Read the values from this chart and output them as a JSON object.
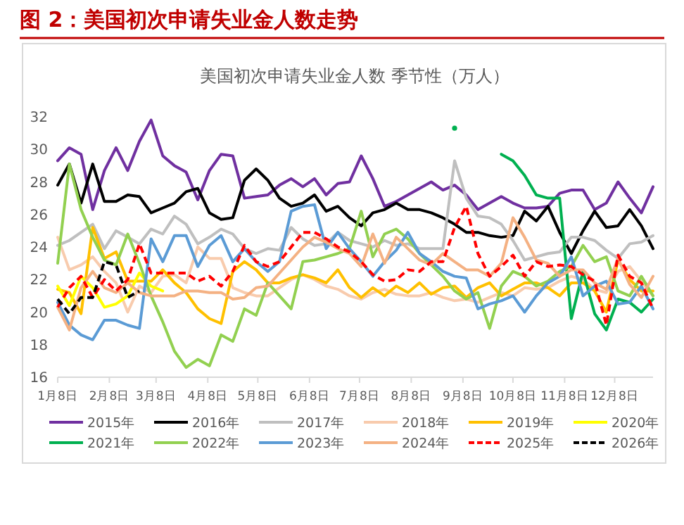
{
  "chart_data": {
    "type": "line",
    "title": "图 2：美国初次申请失业金人数走势",
    "subtitle": "美国初次申请失业金人数 季节性（万人）",
    "x": [
      "--01-08",
      "--01-15",
      "--01-22",
      "--01-29",
      "--02-05",
      "--02-12",
      "--02-19",
      "--02-26",
      "--03-05",
      "--03-12",
      "--03-19",
      "--03-26",
      "--04-02",
      "--04-09",
      "--04-16",
      "--04-23",
      "--04-30",
      "--05-07",
      "--05-14",
      "--05-21",
      "--05-28",
      "--06-04",
      "--06-11",
      "--06-18",
      "--06-25",
      "--07-02",
      "--07-09",
      "--07-16",
      "--07-23",
      "--07-30",
      "--08-06",
      "--08-13",
      "--08-20",
      "--08-27",
      "--09-03",
      "--09-10",
      "--09-17",
      "--09-24",
      "--10-01",
      "--10-08",
      "--10-15",
      "--10-22",
      "--10-29",
      "--11-05",
      "--11-12",
      "--11-19",
      "--11-26",
      "--12-03",
      "--12-10",
      "--12-17",
      "--12-24",
      "--12-31"
    ],
    "xlim": [
      "--01-08",
      "--12-31"
    ],
    "xticks": [
      {
        "value": "--01-08",
        "label": "1月8日"
      },
      {
        "value": "--02-08",
        "label": "2月8日"
      },
      {
        "value": "--03-08",
        "label": "3月8日"
      },
      {
        "value": "--04-08",
        "label": "4月8日"
      },
      {
        "value": "--05-08",
        "label": "5月8日"
      },
      {
        "value": "--06-08",
        "label": "6月8日"
      },
      {
        "value": "--07-08",
        "label": "7月8日"
      },
      {
        "value": "--08-08",
        "label": "8月8日"
      },
      {
        "value": "--09-08",
        "label": "9月8日"
      },
      {
        "value": "--10-08",
        "label": "10月8日"
      },
      {
        "value": "--11-08",
        "label": "11月8日"
      },
      {
        "value": "--12-08",
        "label": "12月8日"
      }
    ],
    "ylim": [
      16,
      32
    ],
    "yticks": [
      16,
      18,
      20,
      22,
      24,
      26,
      28,
      30,
      32
    ],
    "legend": "bottom",
    "series": [
      {
        "name": "2015年",
        "color": "#7030a0",
        "values": [
          29.3,
          30.1,
          29.7,
          26.3,
          28.7,
          30.1,
          28.7,
          30.5,
          31.8,
          29.6,
          29.0,
          28.6,
          26.9,
          28.7,
          29.7,
          29.6,
          27.0,
          27.1,
          27.2,
          27.8,
          28.2,
          27.7,
          28.2,
          27.2,
          27.9,
          28.0,
          29.6,
          28.2,
          26.5,
          26.8,
          27.2,
          27.6,
          28.0,
          27.5,
          27.8,
          27.2,
          26.3,
          26.7,
          27.1,
          26.7,
          26.4,
          26.4,
          26.5,
          27.3,
          27.5,
          27.5,
          26.3,
          26.7,
          28.0,
          27.0,
          26.1,
          27.7
        ]
      },
      {
        "name": "2016年",
        "color": "#000000",
        "values": [
          27.8,
          29.1,
          26.7,
          29.1,
          26.8,
          26.8,
          27.2,
          27.1,
          26.1,
          26.4,
          26.7,
          27.4,
          27.6,
          26.1,
          25.7,
          25.8,
          28.1,
          28.8,
          28.1,
          27.0,
          26.5,
          26.7,
          27.2,
          26.2,
          26.5,
          25.8,
          25.3,
          26.1,
          26.3,
          26.7,
          26.3,
          26.3,
          26.1,
          25.8,
          25.4,
          24.9,
          24.9,
          24.7,
          24.6,
          24.7,
          26.2,
          25.6,
          26.5,
          24.9,
          23.6,
          25.0,
          26.2,
          25.2,
          25.3,
          26.3,
          25.3,
          23.9
        ]
      },
      {
        "name": "2017年",
        "color": "#bfbfbf",
        "values": [
          24.1,
          24.4,
          24.9,
          25.4,
          23.9,
          25.0,
          24.6,
          24.2,
          25.1,
          24.8,
          25.9,
          25.4,
          24.2,
          24.6,
          25.1,
          24.8,
          23.9,
          23.6,
          23.9,
          23.8,
          25.2,
          24.5,
          24.1,
          24.2,
          24.9,
          24.4,
          24.2,
          24.0,
          24.4,
          24.1,
          24.2,
          23.9,
          23.9,
          23.9,
          29.3,
          27.0,
          25.9,
          25.8,
          25.4,
          24.4,
          23.2,
          23.4,
          23.6,
          23.7,
          24.6,
          24.6,
          24.4,
          23.8,
          23.3,
          24.2,
          24.3,
          24.7
        ]
      },
      {
        "name": "2018年",
        "color": "#f8cbad",
        "values": [
          24.6,
          22.6,
          22.9,
          23.4,
          22.5,
          21.8,
          20.0,
          21.6,
          21.2,
          22.2,
          22.3,
          21.8,
          24.0,
          23.3,
          23.3,
          21.5,
          21.2,
          21.0,
          21.0,
          21.5,
          22.0,
          22.3,
          22.0,
          21.6,
          21.4,
          21.0,
          20.8,
          21.2,
          21.4,
          21.1,
          21.0,
          21.0,
          21.2,
          20.9,
          20.7,
          20.8,
          20.6,
          20.9,
          21.2,
          21.0,
          21.5,
          21.4,
          21.5,
          21.9,
          22.2,
          22.0,
          21.4,
          21.2,
          22.5,
          22.8,
          21.9,
          21.0
        ]
      },
      {
        "name": "2019年",
        "color": "#ffc000",
        "values": [
          21.4,
          21.2,
          19.9,
          25.2,
          23.3,
          23.7,
          21.9,
          21.9,
          21.9,
          22.6,
          21.8,
          21.2,
          20.2,
          19.6,
          19.3,
          22.5,
          23.1,
          22.6,
          21.8,
          21.8,
          22.1,
          22.3,
          22.1,
          21.8,
          22.6,
          21.5,
          20.9,
          21.5,
          21.0,
          21.6,
          21.2,
          21.8,
          21.1,
          21.5,
          21.6,
          20.9,
          21.5,
          21.8,
          21.0,
          21.4,
          21.8,
          21.8,
          21.5,
          21.0,
          21.8,
          21.8,
          21.3,
          20.0,
          23.2,
          22.0,
          21.3,
          21.3
        ]
      },
      {
        "name": "2020年",
        "color": "#ffff00",
        "values": [
          21.6,
          20.4,
          22.2,
          21.5,
          20.3,
          20.5,
          21.0,
          22.4,
          21.6,
          21.3,
          null,
          null,
          null,
          null,
          null,
          null,
          null,
          null,
          null,
          null,
          null,
          null,
          null,
          null,
          null,
          null,
          null,
          null,
          null,
          null,
          null,
          null,
          null,
          null,
          null,
          null,
          null,
          null,
          null,
          null,
          null,
          null,
          null,
          null,
          null,
          null,
          null,
          null,
          null,
          null,
          null,
          null
        ]
      },
      {
        "name": "2021年",
        "color": "#00b050",
        "values": [
          null,
          null,
          null,
          null,
          null,
          null,
          null,
          null,
          null,
          null,
          null,
          null,
          null,
          null,
          null,
          null,
          null,
          null,
          null,
          null,
          null,
          null,
          null,
          null,
          null,
          null,
          null,
          null,
          null,
          null,
          null,
          null,
          null,
          null,
          31.3,
          null,
          null,
          null,
          29.7,
          29.3,
          28.4,
          27.2,
          27.0,
          27.0,
          19.6,
          22.5,
          19.9,
          18.9,
          20.8,
          20.6,
          20.0,
          20.8
        ]
      },
      {
        "name": "2022年",
        "color": "#92d050",
        "values": [
          23.0,
          29.1,
          26.3,
          24.6,
          23.2,
          22.9,
          24.8,
          23.0,
          21.0,
          19.4,
          17.6,
          16.6,
          17.1,
          16.7,
          18.6,
          18.2,
          20.2,
          19.8,
          21.8,
          21.0,
          20.2,
          23.1,
          23.2,
          23.4,
          23.6,
          23.9,
          26.2,
          23.4,
          24.8,
          25.1,
          24.5,
          23.6,
          22.9,
          22.2,
          21.3,
          20.8,
          21.2,
          19.0,
          21.6,
          22.5,
          22.2,
          21.6,
          21.9,
          22.5,
          22.8,
          24.1,
          23.1,
          23.4,
          21.3,
          21.0,
          22.2,
          21.0
        ]
      },
      {
        "name": "2023年",
        "color": "#5b9bd5",
        "values": [
          20.6,
          19.2,
          18.6,
          18.3,
          19.5,
          19.5,
          19.2,
          19.0,
          24.5,
          23.1,
          24.7,
          24.7,
          22.8,
          24.1,
          24.7,
          23.1,
          23.9,
          23.1,
          22.5,
          23.1,
          26.2,
          26.5,
          26.6,
          23.9,
          24.9,
          23.9,
          23.1,
          22.2,
          23.1,
          23.8,
          24.9,
          23.6,
          23.1,
          22.5,
          22.2,
          22.1,
          20.2,
          20.5,
          20.7,
          21.0,
          20.0,
          21.0,
          21.8,
          22.2,
          23.4,
          21.0,
          21.6,
          21.9,
          20.5,
          20.6,
          21.6,
          20.2
        ]
      },
      {
        "name": "2024年",
        "color": "#f4b183",
        "values": [
          20.3,
          18.9,
          21.5,
          22.5,
          21.5,
          21.2,
          21.8,
          21.2,
          21.0,
          21.0,
          21.0,
          21.3,
          21.3,
          21.2,
          21.2,
          20.8,
          20.9,
          21.5,
          21.6,
          22.4,
          23.2,
          24.0,
          24.6,
          24.3,
          23.9,
          23.6,
          22.8,
          24.8,
          23.0,
          24.6,
          23.9,
          23.2,
          22.9,
          23.6,
          23.1,
          22.6,
          22.6,
          22.2,
          23.0,
          25.8,
          24.6,
          23.2,
          23.0,
          22.2,
          22.6,
          22.6,
          21.8,
          21.4,
          23.3,
          21.7,
          20.9,
          22.2
        ]
      },
      {
        "name": "2025年",
        "color": "#ff0000",
        "line_style": "dashed",
        "values": [
          20.3,
          21.5,
          22.2,
          20.9,
          22.0,
          21.3,
          22.0,
          24.2,
          22.4,
          22.4,
          22.4,
          22.4,
          21.9,
          22.2,
          21.6,
          22.5,
          24.1,
          23.1,
          22.8,
          23.1,
          24.0,
          24.9,
          24.9,
          24.5,
          24.0,
          23.7,
          23.1,
          22.3,
          21.9,
          22.0,
          22.6,
          22.5,
          23.1,
          23.1,
          25.2,
          26.5,
          23.6,
          22.2,
          22.8,
          23.5,
          22.2,
          23.1,
          22.8,
          22.9,
          22.8,
          22.3,
          21.9,
          19.2,
          23.5,
          22.2,
          21.8,
          20.2
        ]
      },
      {
        "name": "2026年",
        "color": "#000000",
        "line_style": "dashed",
        "values": [
          20.8,
          19.9,
          20.9,
          20.9,
          23.1,
          22.9,
          20.9,
          21.3,
          null,
          null,
          null,
          null,
          null,
          null,
          null,
          null,
          null,
          null,
          null,
          null,
          null,
          null,
          null,
          null,
          null,
          null,
          null,
          null,
          null,
          null,
          null,
          null,
          null,
          null,
          null,
          null,
          null,
          null,
          null,
          null,
          null,
          null,
          null,
          null,
          null,
          null,
          null,
          null,
          null,
          null,
          null,
          null
        ]
      }
    ]
  }
}
